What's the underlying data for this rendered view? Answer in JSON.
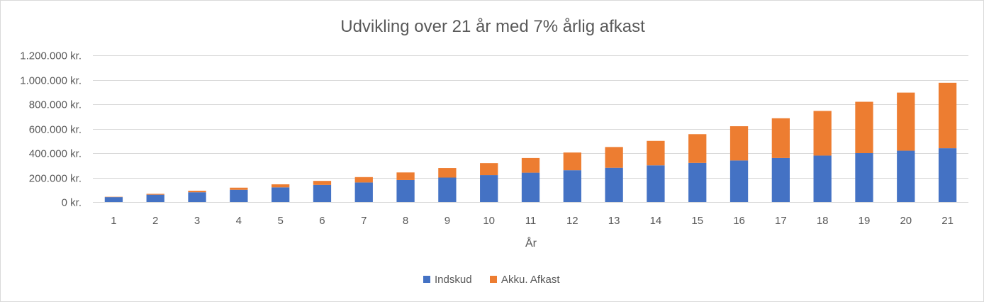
{
  "chart_data": {
    "type": "bar",
    "stacked": true,
    "title": "Udvikling over 21 år med 7% årlig afkast",
    "xlabel": "År",
    "ylabel": "",
    "categories": [
      "1",
      "2",
      "3",
      "4",
      "5",
      "6",
      "7",
      "8",
      "9",
      "10",
      "11",
      "12",
      "13",
      "14",
      "15",
      "16",
      "17",
      "18",
      "19",
      "20",
      "21"
    ],
    "yticks": [
      "0 kr.",
      "200.000 kr.",
      "400.000 kr.",
      "600.000 kr.",
      "800.000 kr.",
      "1.000.000 kr.",
      "1.200.000 kr."
    ],
    "ylim": [
      0,
      1200000
    ],
    "grid": true,
    "legend_position": "bottom",
    "series": [
      {
        "name": "Indskud",
        "color": "#4472C4",
        "values": [
          40000,
          60000,
          80000,
          100000,
          120000,
          140000,
          160000,
          180000,
          200000,
          220000,
          240000,
          260000,
          280000,
          300000,
          320000,
          340000,
          360000,
          380000,
          400000,
          420000,
          440000
        ]
      },
      {
        "name": "Akku. Afkast",
        "color": "#ED7D31",
        "values": [
          2800,
          7000,
          12500,
          17500,
          25000,
          33000,
          44000,
          62000,
          78000,
          98000,
          120000,
          145000,
          170000,
          200000,
          235000,
          280000,
          325000,
          365000,
          420000,
          475000,
          535000
        ]
      }
    ]
  }
}
